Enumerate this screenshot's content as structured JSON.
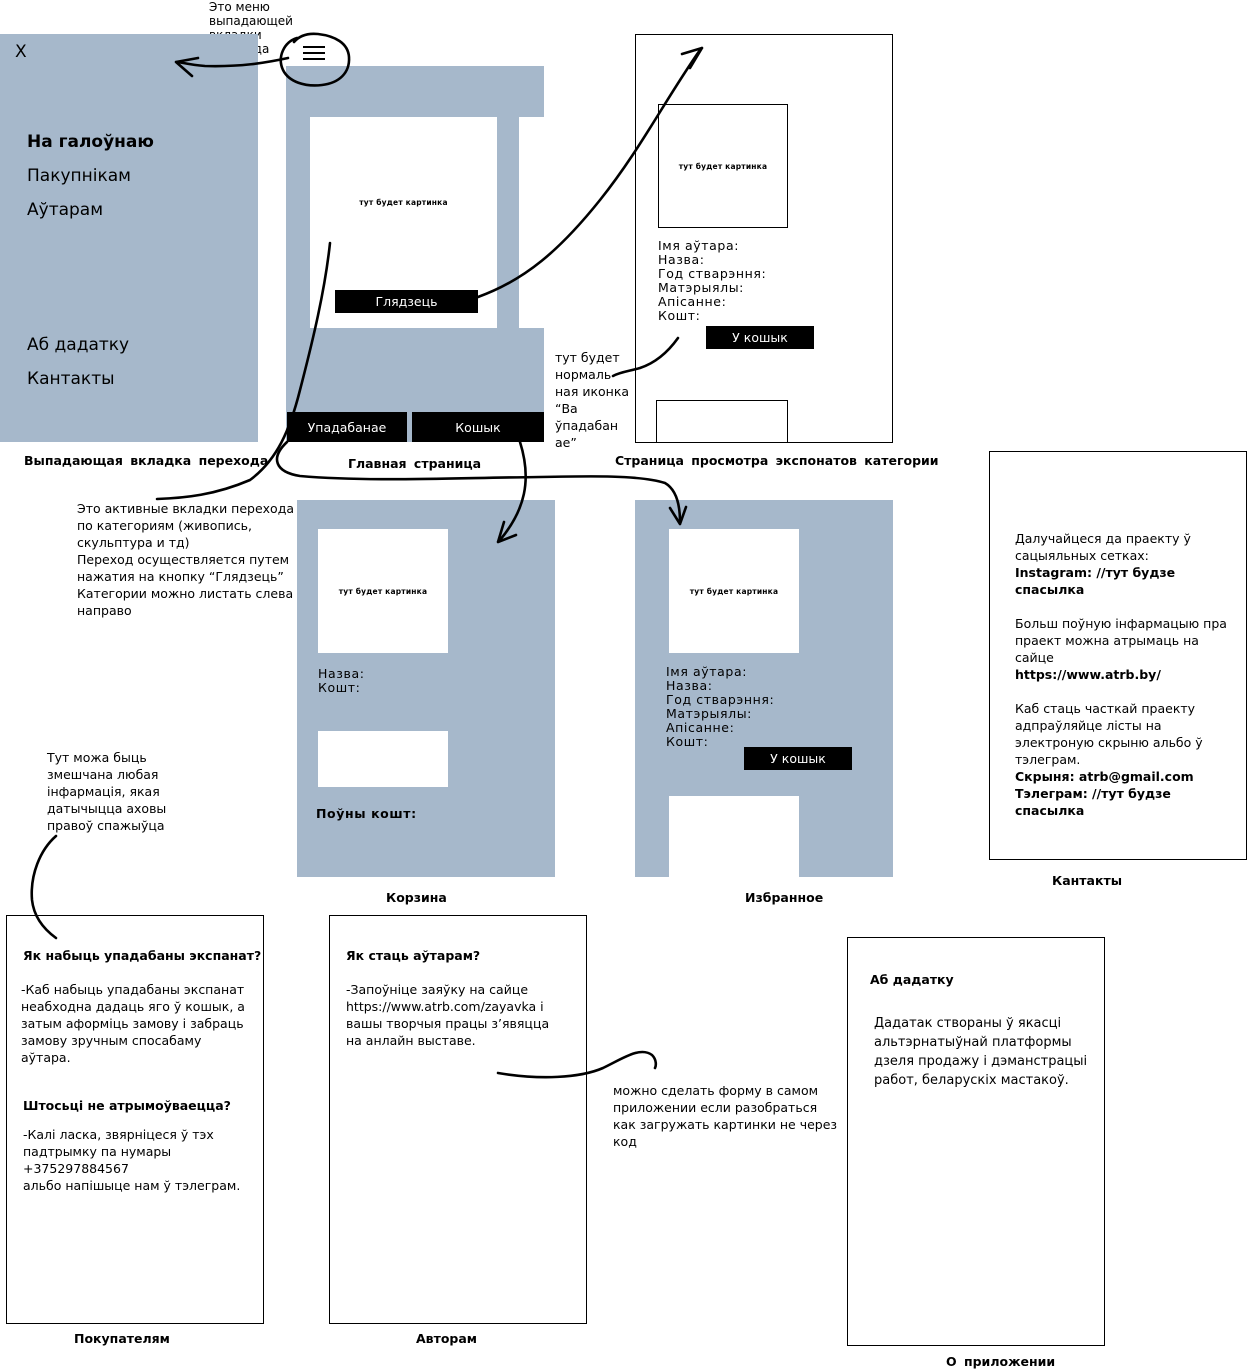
{
  "menu_annotation": "Это  меню\nвыпадающей\nвкладки\nперехода",
  "drawer": {
    "close": "X",
    "items": [
      "На галоўнаю",
      "Пакупнікам",
      "Аўтарам"
    ],
    "items_bottom": [
      "Аб дадатку",
      "Кантакты"
    ],
    "caption": "Выпадающая  вкладка  перехода"
  },
  "home": {
    "image_label": "тут будет картинка",
    "view_button": "Глядзець",
    "favorites_tab": "Упадабанае",
    "cart_tab": "Кошык",
    "caption": "Главная  страница"
  },
  "exhibit": {
    "image_label": "тут будет картинка",
    "fields": "Імя  аўтара:\nНазва:\nГод  стварэння:\nМатэрыялы:\nАпісанне:\nКошт:",
    "cart_button": "У кошык",
    "caption": "Страница  просмотра  экспонатов  категории"
  },
  "icon_note": "тут будет\nнормаль\nная иконка\n “Ва\nўпадабан\nае”",
  "tabs_note": "Это активные вкладки перехода\nпо категориям (живопись,\nскульптура и тд)\nПереход осуществляется путем\nнажатия на кнопку “Глядзець”\nКатегории можно листать слева\nнаправо",
  "cart": {
    "image_label": "тут будет картинка",
    "fields": "Назва:\nКошт:",
    "total": "Поўны  кошт:",
    "caption": "Корзина"
  },
  "favorites": {
    "image_label": "тут будет картинка",
    "fields": "Імя  аўтара:\nНазва:\nГод  стварэння:\nМатэрыялы:\nАпісанне:\nКошт:",
    "cart_button": "У кошык",
    "caption": "Избранное"
  },
  "contacts": {
    "intro": "Далучайцеся да праекту ў\nсацыяльных сетках:",
    "instagram": "Instagram: //тут будзе\nспасылка",
    "more_info": "Больш поўную інфармацыю пра\nпраект можна атрымаць на\nсайце",
    "site": "https://www.atrb.by/",
    "join": "Каб стаць часткай праекту\nадпраўляйце лісты на\nэлектроную скрыню альбо ў\nтэлеграм.",
    "email": "Скрыня: atrb@gmail.com",
    "telegram": "Тэлеграм: //тут будзе\nспасылка",
    "caption": "Кантакты"
  },
  "info_note": "Тут можа быць\nзмешчана любая\nінфармація, якая\nдатычыцца аховы\nправоў спажыўца",
  "buyers": {
    "q1": "Як набыць упадабаны экспанат?",
    "a1": "-Каб набыць упадабаны экспанат\nнеабходна дадаць яго ў кошык, а\nзатым аформіць замову і забраць\nзамову зручным спосабаму\nаўтара.",
    "q2": "Штосьці не атрымоўваецца?",
    "a2": "-Калі ласка, звярніцеся ў тэх\nпадтрымку па нумары\n+375297884567\nальбо напішыце нам ў тэлеграм.",
    "caption": "Покупателям"
  },
  "authors": {
    "q1": "Як стаць аўтарам?",
    "a1": "-Запоўніце заяўку на сайце\nhttps://www.atrb.com/zayavka і\nвашы творчыя працы з’явяцца\nна анлайн выставе.",
    "caption": "Авторам"
  },
  "form_note": "можно сделать форму в самом\nприложении если разобраться\nкак загружать картинки не через\nкод",
  "about": {
    "title": "Аб дадатку",
    "body": "Дадатак створаны ў якасці\nальтэрнатыўнай платформы\nдзеля продажу і дэманстрацыі\nработ, беларускіх мастакоў.",
    "caption": "О  приложении"
  },
  "colors": {
    "panel": "#a6b8cb",
    "button": "#000000"
  }
}
